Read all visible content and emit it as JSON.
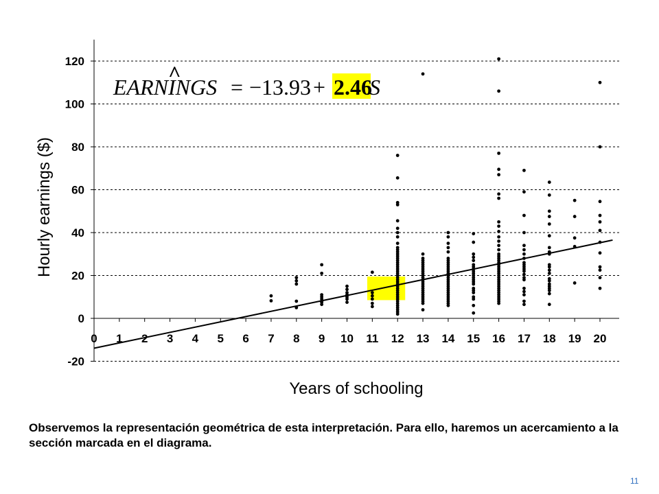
{
  "chart_data": {
    "type": "scatter",
    "title": "",
    "xlabel": "Years of schooling",
    "ylabel": "Hourly earnings ($)",
    "xlim": [
      0,
      20.5
    ],
    "ylim": [
      -20,
      130
    ],
    "x_ticks": [
      0,
      1,
      2,
      3,
      4,
      5,
      6,
      7,
      8,
      9,
      10,
      11,
      12,
      13,
      14,
      15,
      16,
      17,
      18,
      19,
      20
    ],
    "y_ticks": [
      -20,
      0,
      20,
      40,
      60,
      80,
      100,
      120
    ],
    "grid": "horizontal-dashed",
    "equation": {
      "lhs": "EARNINGS",
      "hat": "^",
      "equals": "=",
      "intercept_text": "−13.93",
      "plus": "+",
      "slope_text": "2.46",
      "variable": "S"
    },
    "regression_line": {
      "intercept": -13.93,
      "slope": 2.46,
      "x_range": [
        0,
        20.5
      ]
    },
    "highlight_box": {
      "x_range": [
        10.8,
        12.3
      ],
      "y_range": [
        8.5,
        19.5
      ],
      "color": "#ffff00"
    },
    "point_color": "#000000",
    "points": [
      [
        7,
        10.5
      ],
      [
        7,
        8.2
      ],
      [
        8,
        19
      ],
      [
        8,
        17.5
      ],
      [
        8,
        16
      ],
      [
        8,
        8
      ],
      [
        8,
        5
      ],
      [
        9,
        25
      ],
      [
        9,
        21
      ],
      [
        9,
        11
      ],
      [
        9,
        10
      ],
      [
        9,
        9
      ],
      [
        9,
        8
      ],
      [
        9,
        7.5
      ],
      [
        9,
        6.5
      ],
      [
        10,
        15
      ],
      [
        10,
        13.5
      ],
      [
        10,
        12
      ],
      [
        10,
        11
      ],
      [
        10,
        10
      ],
      [
        10,
        9
      ],
      [
        10,
        7.5
      ],
      [
        11,
        21.5
      ],
      [
        11,
        12
      ],
      [
        11,
        10.5
      ],
      [
        11,
        9
      ],
      [
        11,
        7
      ],
      [
        11,
        5.5
      ],
      [
        12,
        76
      ],
      [
        12,
        65.5
      ],
      [
        12,
        54
      ],
      [
        12,
        53
      ],
      [
        12,
        45.5
      ],
      [
        12,
        42
      ],
      [
        12,
        40
      ],
      [
        12,
        38
      ],
      [
        12,
        35
      ],
      [
        12,
        33
      ],
      [
        12,
        32
      ],
      [
        12,
        31
      ],
      [
        12,
        30
      ],
      [
        12,
        29
      ],
      [
        12,
        28
      ],
      [
        12,
        27
      ],
      [
        12,
        26
      ],
      [
        12,
        25
      ],
      [
        12,
        24
      ],
      [
        12,
        23
      ],
      [
        12,
        22
      ],
      [
        12,
        21
      ],
      [
        12,
        20
      ],
      [
        12,
        19
      ],
      [
        12,
        18
      ],
      [
        12,
        17
      ],
      [
        12,
        16
      ],
      [
        12,
        15
      ],
      [
        12,
        14
      ],
      [
        12,
        13
      ],
      [
        12,
        12
      ],
      [
        12,
        11
      ],
      [
        12,
        10
      ],
      [
        12,
        9
      ],
      [
        12,
        8
      ],
      [
        12,
        7
      ],
      [
        12,
        6
      ],
      [
        12,
        5
      ],
      [
        12,
        4
      ],
      [
        12,
        3
      ],
      [
        12,
        2
      ],
      [
        13,
        114
      ],
      [
        13,
        30
      ],
      [
        13,
        28
      ],
      [
        13,
        27
      ],
      [
        13,
        26
      ],
      [
        13,
        25
      ],
      [
        13,
        24
      ],
      [
        13,
        23
      ],
      [
        13,
        22
      ],
      [
        13,
        21
      ],
      [
        13,
        20
      ],
      [
        13,
        19
      ],
      [
        13,
        18
      ],
      [
        13,
        17
      ],
      [
        13,
        16
      ],
      [
        13,
        15
      ],
      [
        13,
        14
      ],
      [
        13,
        13
      ],
      [
        13,
        12
      ],
      [
        13,
        11
      ],
      [
        13,
        10
      ],
      [
        13,
        9
      ],
      [
        13,
        8
      ],
      [
        13,
        7
      ],
      [
        13,
        4
      ],
      [
        14,
        40
      ],
      [
        14,
        38
      ],
      [
        14,
        35
      ],
      [
        14,
        33
      ],
      [
        14,
        31
      ],
      [
        14,
        28
      ],
      [
        14,
        27
      ],
      [
        14,
        26
      ],
      [
        14,
        25
      ],
      [
        14,
        24
      ],
      [
        14,
        23
      ],
      [
        14,
        22
      ],
      [
        14,
        21
      ],
      [
        14,
        20
      ],
      [
        14,
        19
      ],
      [
        14,
        18
      ],
      [
        14,
        17
      ],
      [
        14,
        16
      ],
      [
        14,
        15
      ],
      [
        14,
        14
      ],
      [
        14,
        13
      ],
      [
        14,
        12
      ],
      [
        14,
        11
      ],
      [
        14,
        10
      ],
      [
        14,
        9
      ],
      [
        14,
        8
      ],
      [
        14,
        7
      ],
      [
        14,
        6
      ],
      [
        15,
        39.5
      ],
      [
        15,
        35.5
      ],
      [
        15,
        30
      ],
      [
        15,
        28.5
      ],
      [
        15,
        27
      ],
      [
        15,
        25
      ],
      [
        15,
        24
      ],
      [
        15,
        23
      ],
      [
        15,
        22
      ],
      [
        15,
        21
      ],
      [
        15,
        20
      ],
      [
        15,
        19
      ],
      [
        15,
        18
      ],
      [
        15,
        17
      ],
      [
        15,
        16
      ],
      [
        15,
        14
      ],
      [
        15,
        13
      ],
      [
        15,
        12
      ],
      [
        15,
        10
      ],
      [
        15,
        9
      ],
      [
        15,
        6
      ],
      [
        15,
        2.5
      ],
      [
        16,
        121
      ],
      [
        16,
        106
      ],
      [
        16,
        77
      ],
      [
        16,
        69.5
      ],
      [
        16,
        67
      ],
      [
        16,
        58
      ],
      [
        16,
        56
      ],
      [
        16,
        45
      ],
      [
        16,
        43
      ],
      [
        16,
        40.5
      ],
      [
        16,
        38
      ],
      [
        16,
        36
      ],
      [
        16,
        34
      ],
      [
        16,
        32
      ],
      [
        16,
        30
      ],
      [
        16,
        29
      ],
      [
        16,
        28
      ],
      [
        16,
        27
      ],
      [
        16,
        26
      ],
      [
        16,
        25
      ],
      [
        16,
        24
      ],
      [
        16,
        23
      ],
      [
        16,
        22
      ],
      [
        16,
        21
      ],
      [
        16,
        20
      ],
      [
        16,
        19
      ],
      [
        16,
        18
      ],
      [
        16,
        17
      ],
      [
        16,
        16
      ],
      [
        16,
        15
      ],
      [
        16,
        14
      ],
      [
        16,
        13
      ],
      [
        16,
        12
      ],
      [
        16,
        11
      ],
      [
        16,
        10
      ],
      [
        16,
        9
      ],
      [
        16,
        8
      ],
      [
        16,
        7
      ],
      [
        17,
        69
      ],
      [
        17,
        59
      ],
      [
        17,
        48
      ],
      [
        17,
        40
      ],
      [
        17,
        34
      ],
      [
        17,
        32
      ],
      [
        17,
        30
      ],
      [
        17,
        28
      ],
      [
        17,
        26
      ],
      [
        17,
        25
      ],
      [
        17,
        24
      ],
      [
        17,
        23
      ],
      [
        17,
        22
      ],
      [
        17,
        20.5
      ],
      [
        17,
        19
      ],
      [
        17,
        18
      ],
      [
        17,
        14
      ],
      [
        17,
        12.5
      ],
      [
        17,
        11
      ],
      [
        17,
        8
      ],
      [
        17,
        6.5
      ],
      [
        18,
        63.5
      ],
      [
        18,
        57.5
      ],
      [
        18,
        50
      ],
      [
        18,
        47.5
      ],
      [
        18,
        44
      ],
      [
        18,
        38.5
      ],
      [
        18,
        33
      ],
      [
        18,
        31
      ],
      [
        18,
        30
      ],
      [
        18,
        25
      ],
      [
        18,
        24
      ],
      [
        18,
        22.5
      ],
      [
        18,
        21
      ],
      [
        18,
        18.5
      ],
      [
        18,
        17.5
      ],
      [
        18,
        16
      ],
      [
        18,
        15
      ],
      [
        18,
        14
      ],
      [
        18,
        13
      ],
      [
        18,
        11.5
      ],
      [
        18,
        6.5
      ],
      [
        19,
        55
      ],
      [
        19,
        47.5
      ],
      [
        19,
        37.5
      ],
      [
        19,
        33.5
      ],
      [
        19,
        16.5
      ],
      [
        20,
        110
      ],
      [
        20,
        80
      ],
      [
        20,
        54.5
      ],
      [
        20,
        48
      ],
      [
        20,
        45
      ],
      [
        20,
        41
      ],
      [
        20,
        35.5
      ],
      [
        20,
        30.5
      ],
      [
        20,
        24
      ],
      [
        20,
        22.5
      ],
      [
        20,
        19
      ],
      [
        20,
        14
      ]
    ]
  },
  "caption": "Observemos la representación geométrica de esta interpretación. Para ello, haremos un acercamiento a la sección marcada en el diagrama.",
  "page_number": "11",
  "colors": {
    "highlight": "#ffff00",
    "page_number": "#2f6fc0",
    "grid": "#000000"
  }
}
